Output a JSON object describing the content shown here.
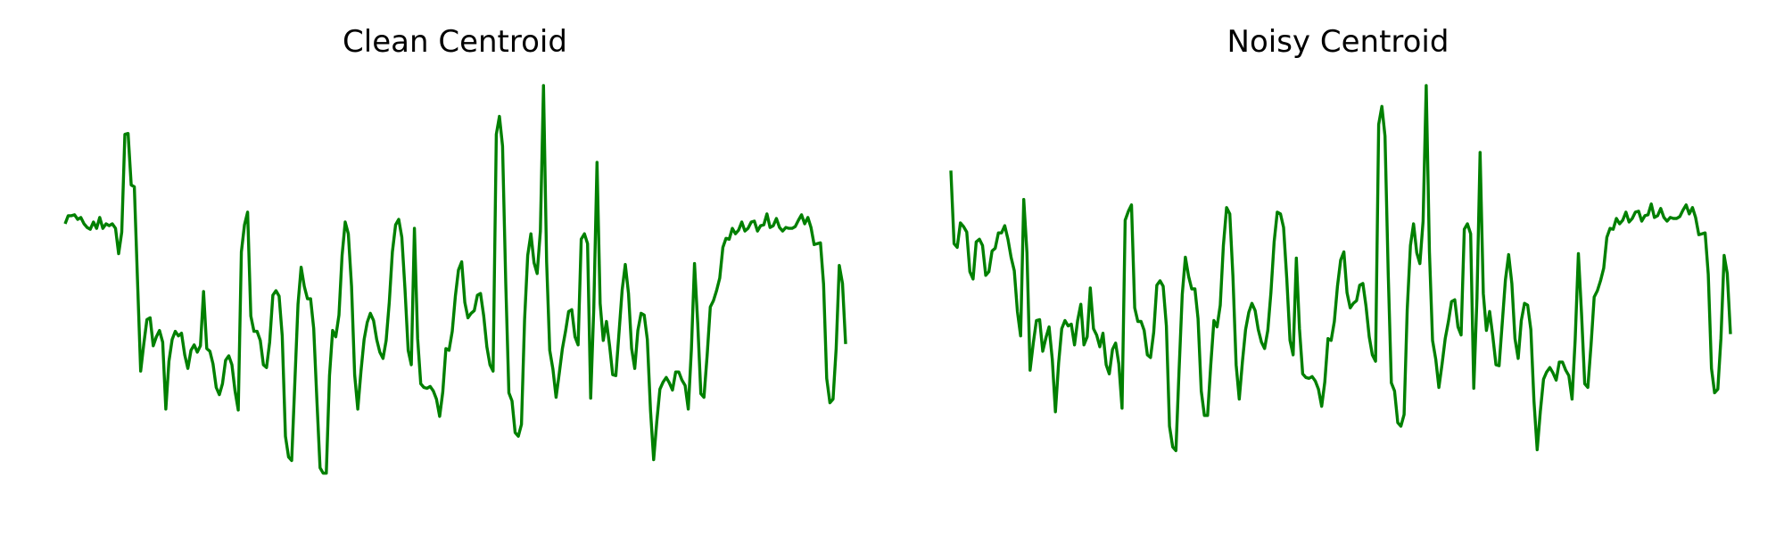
{
  "chart_data": [
    {
      "type": "line",
      "title": "Clean Centroid",
      "xlabel": "",
      "ylabel": "",
      "grid": false,
      "axes_visible": false,
      "xlim": [
        0,
        199
      ],
      "ylim": [
        0.8,
        5.3
      ],
      "series": [
        {
          "color": "#008000",
          "values": [
            3.77,
            3.86,
            3.86,
            3.87,
            3.82,
            3.84,
            3.77,
            3.73,
            3.71,
            3.79,
            3.72,
            3.84,
            3.72,
            3.77,
            3.75,
            3.77,
            3.72,
            3.44,
            3.68,
            4.76,
            4.77,
            4.2,
            4.18,
            3.16,
            2.14,
            2.44,
            2.71,
            2.73,
            2.42,
            2.52,
            2.59,
            2.46,
            1.72,
            2.25,
            2.49,
            2.58,
            2.53,
            2.56,
            2.32,
            2.17,
            2.37,
            2.43,
            2.35,
            2.42,
            3.02,
            2.39,
            2.36,
            2.22,
            1.96,
            1.88,
            2.0,
            2.26,
            2.31,
            2.21,
            1.92,
            1.71,
            3.46,
            3.76,
            3.9,
            2.75,
            2.58,
            2.58,
            2.48,
            2.21,
            2.18,
            2.46,
            2.98,
            3.03,
            2.97,
            2.53,
            1.42,
            1.19,
            1.15,
            2.03,
            2.88,
            3.29,
            3.08,
            2.94,
            2.94,
            2.61,
            1.81,
            1.07,
            1.01,
            1.01,
            2.09,
            2.59,
            2.52,
            2.76,
            3.42,
            3.79,
            3.66,
            3.08,
            2.1,
            1.72,
            2.14,
            2.49,
            2.68,
            2.78,
            2.7,
            2.49,
            2.35,
            2.28,
            2.48,
            2.9,
            3.46,
            3.76,
            3.82,
            3.62,
            3.05,
            2.37,
            2.21,
            3.72,
            2.5,
            2.0,
            1.96,
            1.95,
            1.97,
            1.92,
            1.83,
            1.64,
            1.91,
            2.39,
            2.37,
            2.58,
            2.97,
            3.26,
            3.35,
            2.9,
            2.73,
            2.78,
            2.81,
            2.98,
            3.0,
            2.75,
            2.41,
            2.21,
            2.14,
            4.76,
            4.96,
            4.63,
            3.11,
            1.9,
            1.81,
            1.46,
            1.42,
            1.55,
            2.71,
            3.42,
            3.66,
            3.34,
            3.22,
            3.69,
            5.3,
            3.35,
            2.37,
            2.16,
            1.85,
            2.11,
            2.39,
            2.58,
            2.8,
            2.82,
            2.52,
            2.43,
            3.6,
            3.66,
            3.55,
            1.84,
            2.84,
            4.45,
            2.89,
            2.48,
            2.69,
            2.42,
            2.1,
            2.09,
            2.57,
            3.04,
            3.32,
            3.0,
            2.39,
            2.17,
            2.59,
            2.78,
            2.76,
            2.49,
            1.7,
            1.16,
            1.58,
            1.94,
            2.02,
            2.07,
            2.01,
            1.93,
            2.13,
            2.13,
            2.04,
            1.98,
            1.72,
            2.38,
            3.33,
            2.67,
            1.89,
            1.85,
            2.32,
            2.85,
            2.92,
            3.03,
            3.17,
            3.51,
            3.61,
            3.6,
            3.72,
            3.66,
            3.7,
            3.79,
            3.69,
            3.72,
            3.79,
            3.8,
            3.69,
            3.75,
            3.76,
            3.88,
            3.73,
            3.75,
            3.83,
            3.73,
            3.69,
            3.73,
            3.72,
            3.72,
            3.74,
            3.81,
            3.87,
            3.77,
            3.84,
            3.73,
            3.54,
            3.55,
            3.56,
            3.1,
            2.06,
            1.79,
            1.83,
            2.39,
            3.31,
            3.11,
            2.44
          ]
        }
      ]
    },
    {
      "type": "line",
      "title": "Noisy Centroid",
      "xlabel": "",
      "ylabel": "",
      "grid": false,
      "axes_visible": false,
      "xlim": [
        0,
        199
      ],
      "ylim": [
        0.8,
        5.3
      ],
      "series": [
        {
          "color": "#008000",
          "values": [
            4.36,
            3.55,
            3.51,
            3.78,
            3.74,
            3.68,
            3.24,
            3.16,
            3.57,
            3.6,
            3.53,
            3.2,
            3.24,
            3.47,
            3.5,
            3.67,
            3.67,
            3.75,
            3.6,
            3.4,
            3.25,
            2.8,
            2.53,
            4.04,
            3.45,
            2.15,
            2.45,
            2.7,
            2.71,
            2.36,
            2.51,
            2.63,
            2.27,
            1.69,
            2.23,
            2.61,
            2.7,
            2.64,
            2.66,
            2.43,
            2.7,
            2.88,
            2.43,
            2.52,
            3.06,
            2.61,
            2.54,
            2.41,
            2.56,
            2.21,
            2.11,
            2.38,
            2.45,
            2.22,
            1.73,
            3.81,
            3.91,
            3.98,
            2.84,
            2.69,
            2.69,
            2.59,
            2.32,
            2.29,
            2.57,
            3.09,
            3.14,
            3.08,
            2.64,
            1.53,
            1.3,
            1.26,
            2.14,
            2.99,
            3.4,
            3.19,
            3.05,
            3.05,
            2.72,
            1.92,
            1.65,
            1.65,
            2.2,
            2.7,
            2.63,
            2.87,
            3.53,
            3.95,
            3.88,
            3.19,
            2.21,
            1.83,
            2.25,
            2.6,
            2.79,
            2.89,
            2.81,
            2.6,
            2.46,
            2.39,
            2.59,
            3.01,
            3.57,
            3.9,
            3.88,
            3.73,
            3.16,
            2.48,
            2.32,
            3.39,
            2.61,
            2.11,
            2.07,
            2.06,
            2.08,
            2.03,
            1.94,
            1.75,
            2.02,
            2.5,
            2.48,
            2.69,
            3.08,
            3.37,
            3.46,
            3.01,
            2.84,
            2.89,
            2.92,
            3.09,
            3.11,
            2.86,
            2.52,
            2.32,
            2.25,
            4.87,
            5.07,
            4.74,
            3.22,
            2.01,
            1.92,
            1.57,
            1.53,
            1.66,
            2.82,
            3.53,
            3.77,
            3.45,
            3.33,
            3.8,
            5.3,
            3.46,
            2.48,
            2.27,
            1.96,
            2.22,
            2.5,
            2.69,
            2.91,
            2.93,
            2.63,
            2.54,
            3.71,
            3.77,
            3.66,
            1.95,
            2.95,
            4.56,
            3.0,
            2.59,
            2.8,
            2.53,
            2.21,
            2.2,
            2.68,
            3.15,
            3.43,
            3.11,
            2.5,
            2.28,
            2.7,
            2.89,
            2.87,
            2.6,
            1.81,
            1.27,
            1.69,
            2.05,
            2.13,
            2.18,
            2.12,
            2.04,
            2.24,
            2.24,
            2.15,
            2.09,
            1.83,
            2.49,
            3.44,
            2.78,
            2.0,
            1.96,
            2.43,
            2.96,
            3.03,
            3.14,
            3.28,
            3.62,
            3.72,
            3.71,
            3.83,
            3.77,
            3.81,
            3.9,
            3.79,
            3.83,
            3.9,
            3.91,
            3.8,
            3.86,
            3.87,
            3.99,
            3.84,
            3.86,
            3.94,
            3.84,
            3.8,
            3.84,
            3.83,
            3.83,
            3.85,
            3.92,
            3.98,
            3.88,
            3.95,
            3.84,
            3.65,
            3.66,
            3.67,
            3.21,
            2.17,
            1.9,
            1.94,
            2.5,
            3.42,
            3.22,
            2.55
          ]
        }
      ]
    }
  ]
}
